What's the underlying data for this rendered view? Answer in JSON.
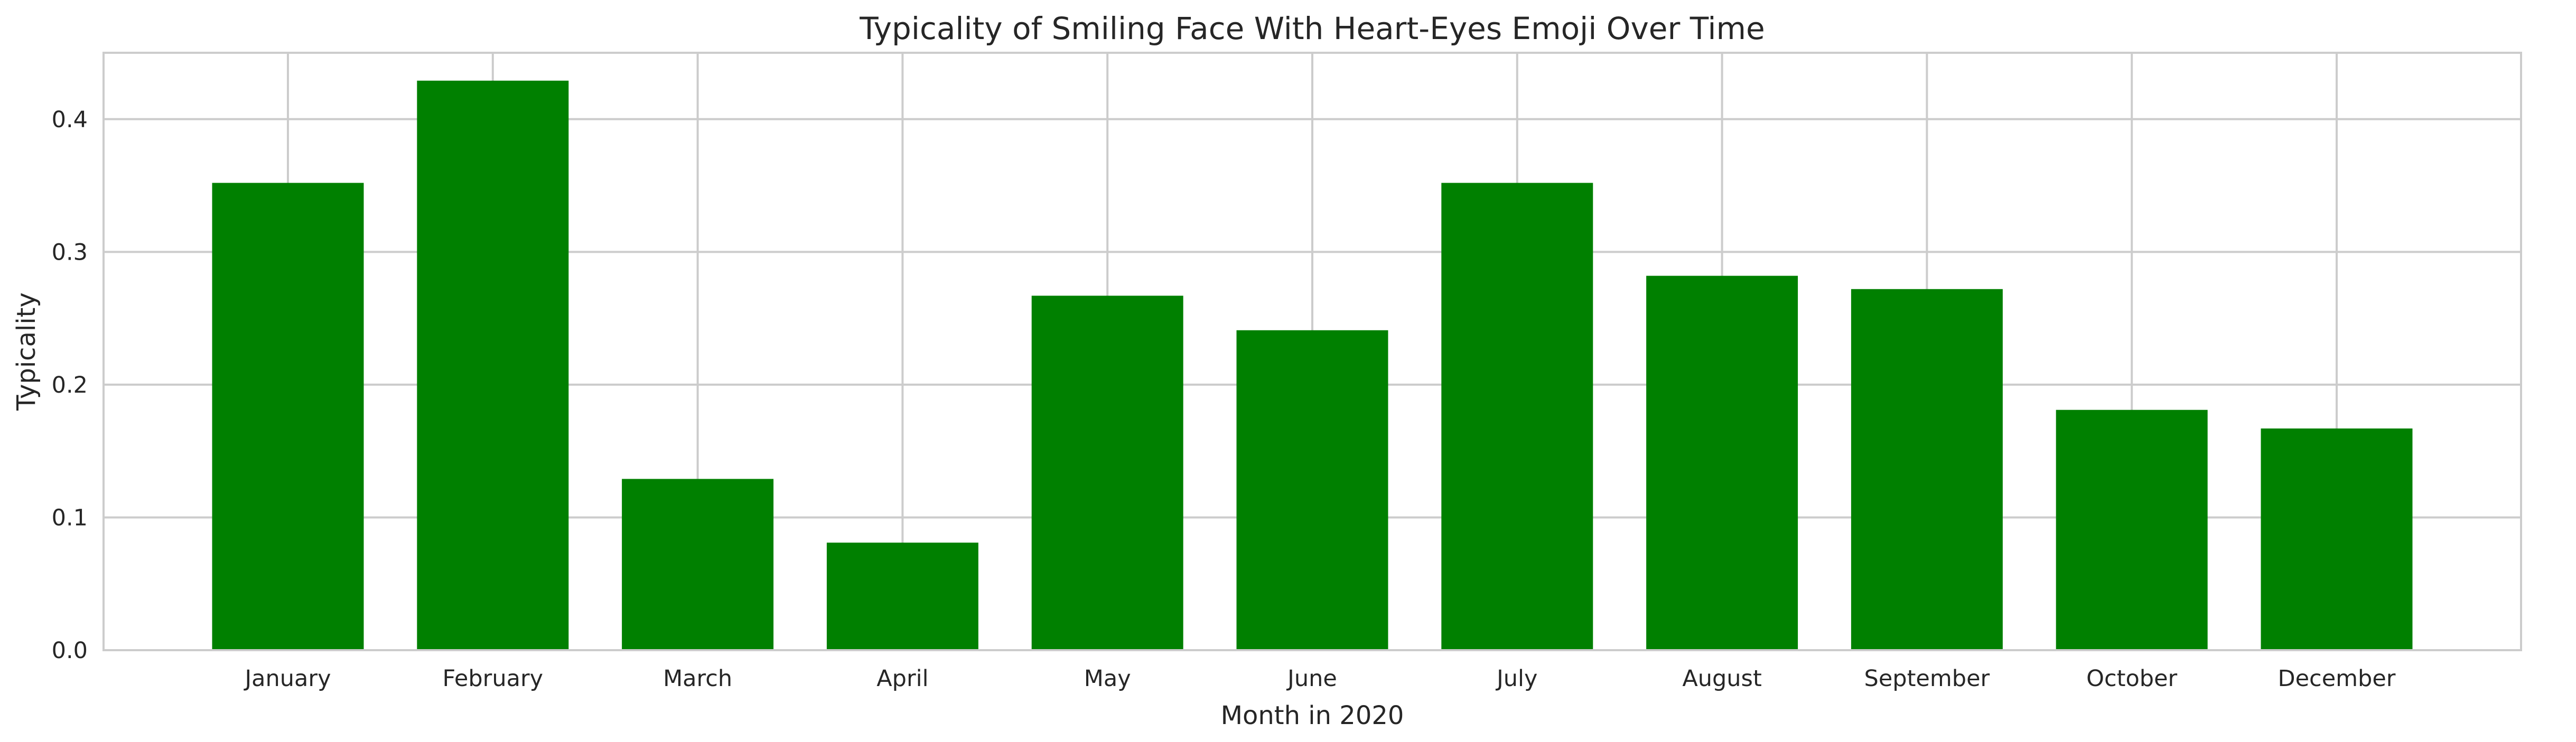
{
  "chart_data": {
    "type": "bar",
    "title": "Typicality of Smiling Face With Heart-Eyes Emoji Over Time",
    "xlabel": "Month in 2020",
    "ylabel": "Typicality",
    "categories": [
      "January",
      "February",
      "March",
      "April",
      "May",
      "June",
      "July",
      "August",
      "September",
      "October",
      "December"
    ],
    "values": [
      0.352,
      0.429,
      0.129,
      0.081,
      0.267,
      0.241,
      0.352,
      0.282,
      0.272,
      0.181,
      0.167
    ],
    "ylim": [
      0,
      0.45
    ],
    "yticks": [
      0.0,
      0.1,
      0.2,
      0.3,
      0.4
    ],
    "ytick_labels": [
      "0.0",
      "0.1",
      "0.2",
      "0.3",
      "0.4"
    ],
    "grid": true,
    "legend": "none",
    "bar_color": "#008000",
    "grid_color": "#cccccc",
    "text_color": "#262626"
  }
}
